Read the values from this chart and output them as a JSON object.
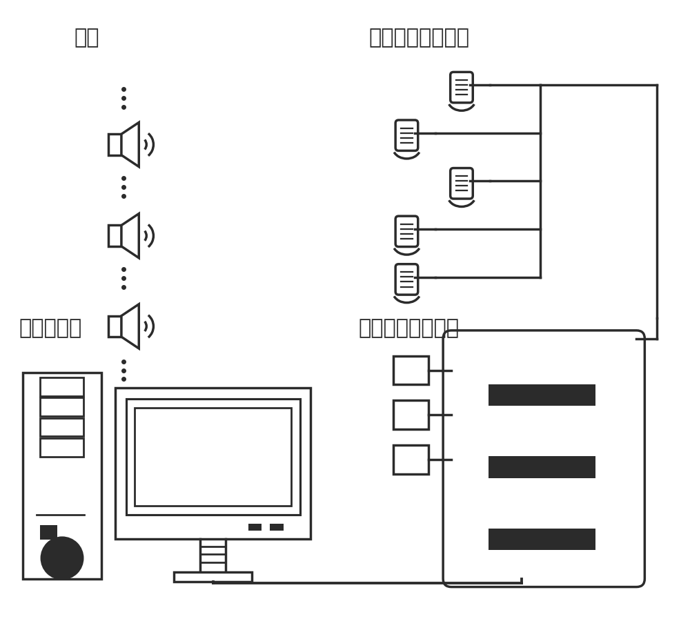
{
  "bg_color": "#ffffff",
  "line_color": "#2b2b2b",
  "lw": 2.5,
  "title_shengyuan": "声源",
  "title_maikefeng": "麦克风阵列传感器",
  "title_shujuchuliq": "数据处理器",
  "title_duotongdao": "多通道数据采集器",
  "fig_width": 10.0,
  "fig_height": 9.13
}
